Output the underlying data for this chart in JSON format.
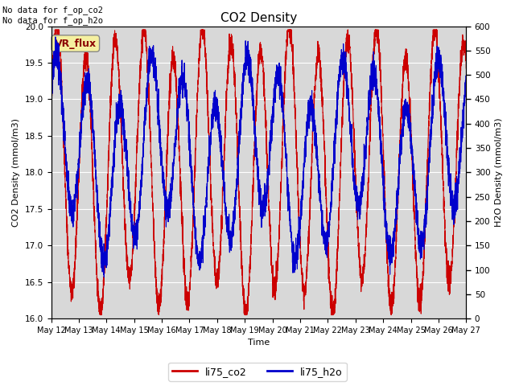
{
  "title": "CO2 Density",
  "xlabel": "Time",
  "ylabel_left": "CO2 Density (mmol/m3)",
  "ylabel_right": "H2O Density (mmol/m3)",
  "ylim_left": [
    16.0,
    20.0
  ],
  "ylim_right": [
    0,
    600
  ],
  "annotation_text": "No data for f_op_co2\nNo data for f_op_h2o",
  "legend_label1": "li75_co2",
  "legend_label2": "li75_h2o",
  "vr_flux_label": "VR_flux",
  "figure_bg": "#ffffff",
  "plot_bg": "#d8d8d8",
  "line_color_co2": "#cc0000",
  "line_color_h2o": "#0000cc",
  "x_tick_labels": [
    "May 12",
    "May 13",
    "May 14",
    "May 15",
    "May 16",
    "May 17",
    "May 18",
    "May 19",
    "May 20",
    "May 21",
    "May 22",
    "May 23",
    "May 24",
    "May 25",
    "May 26",
    "May 27"
  ],
  "yticks_left": [
    16.0,
    16.5,
    17.0,
    17.5,
    18.0,
    18.5,
    19.0,
    19.5,
    20.0
  ],
  "yticks_right": [
    0,
    50,
    100,
    150,
    200,
    250,
    300,
    350,
    400,
    450,
    500,
    550,
    600
  ],
  "num_points": 5000
}
